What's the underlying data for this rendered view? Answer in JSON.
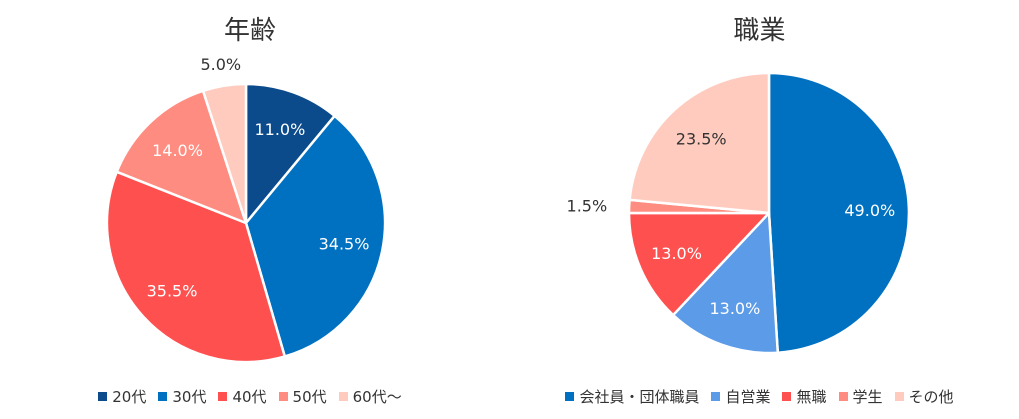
{
  "chart_data": [
    {
      "type": "pie",
      "title": "年齢",
      "labels": [
        "20代",
        "30代",
        "40代",
        "50代",
        "60代～"
      ],
      "values": [
        11.0,
        34.5,
        35.5,
        14.0,
        5.0
      ],
      "value_labels": [
        "11.0%",
        "34.5%",
        "35.5%",
        "14.0%",
        "5.0%"
      ],
      "colors": [
        "#0B4A8B",
        "#0070C0",
        "#FF5050",
        "#FF8C80",
        "#FFCBBF"
      ],
      "label_colors": [
        "#ffffff",
        "#ffffff",
        "#ffffff",
        "#ffffff",
        "#333333"
      ],
      "legend": "bottom"
    },
    {
      "type": "pie",
      "title": "職業",
      "labels": [
        "会社員・団体職員",
        "自営業",
        "無職",
        "学生",
        "その他"
      ],
      "values": [
        49.0,
        13.0,
        13.0,
        1.5,
        23.5
      ],
      "value_labels": [
        "49.0%",
        "13.0%",
        "13.0%",
        "1.5%",
        "23.5%"
      ],
      "colors": [
        "#0070C0",
        "#5B9BE8",
        "#FF5050",
        "#FF8C80",
        "#FFCBBF"
      ],
      "label_colors": [
        "#ffffff",
        "#ffffff",
        "#ffffff",
        "#333333",
        "#333333"
      ],
      "legend": "bottom"
    }
  ]
}
